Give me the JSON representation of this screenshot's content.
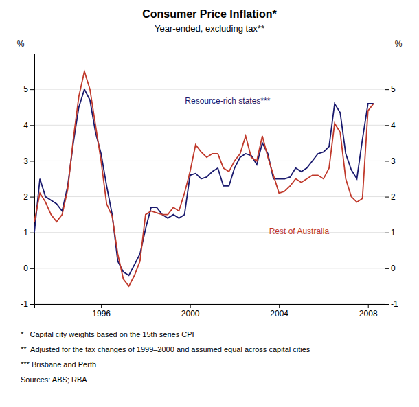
{
  "chart_data": {
    "type": "line",
    "title": "Consumer Price Inflation*",
    "subtitle": "Year-ended, excluding tax**",
    "y_label": "%",
    "y2_label": "%",
    "xlim": [
      1993.0,
      2008.75
    ],
    "xticks": [
      1996,
      2000,
      2004,
      2008
    ],
    "ylim": [
      -1,
      6
    ],
    "yticks": [
      -1,
      0,
      1,
      2,
      3,
      4,
      5
    ],
    "y2lim": [
      -1,
      6
    ],
    "y2ticks": [
      -1,
      0,
      1,
      2,
      3,
      4,
      5
    ],
    "grid": true,
    "x": [
      1993.0,
      1993.25,
      1993.5,
      1993.75,
      1994.0,
      1994.25,
      1994.5,
      1994.75,
      1995.0,
      1995.25,
      1995.5,
      1995.75,
      1996.0,
      1996.25,
      1996.5,
      1996.75,
      1997.0,
      1997.25,
      1997.5,
      1997.75,
      1998.0,
      1998.25,
      1998.5,
      1998.75,
      1999.0,
      1999.25,
      1999.5,
      1999.75,
      2000.0,
      2000.25,
      2000.5,
      2000.75,
      2001.0,
      2001.25,
      2001.5,
      2001.75,
      2002.0,
      2002.25,
      2002.5,
      2002.75,
      2003.0,
      2003.25,
      2003.5,
      2003.75,
      2004.0,
      2004.25,
      2004.5,
      2004.75,
      2005.0,
      2005.25,
      2005.5,
      2005.75,
      2006.0,
      2006.25,
      2006.5,
      2006.75,
      2007.0,
      2007.25,
      2007.5,
      2007.75,
      2008.0,
      2008.25
    ],
    "series": [
      {
        "name": "Resource-rich states***",
        "color": "#1a1a6e",
        "values": [
          1.0,
          2.5,
          2.0,
          1.9,
          1.8,
          1.6,
          2.3,
          3.5,
          4.5,
          5.0,
          4.7,
          3.8,
          3.2,
          2.3,
          1.5,
          0.2,
          -0.1,
          -0.2,
          0.1,
          0.4,
          1.1,
          1.7,
          1.7,
          1.5,
          1.4,
          1.5,
          1.4,
          1.5,
          2.6,
          2.65,
          2.5,
          2.55,
          2.7,
          2.8,
          2.3,
          2.3,
          2.8,
          3.1,
          3.2,
          3.15,
          2.9,
          3.5,
          3.2,
          2.5,
          2.5,
          2.5,
          2.55,
          2.8,
          2.7,
          2.8,
          3.0,
          3.2,
          3.25,
          3.4,
          4.6,
          4.35,
          3.2,
          2.75,
          2.5,
          3.6,
          4.6,
          4.6
        ]
      },
      {
        "name": "Rest of Australia",
        "color": "#c0392b",
        "values": [
          1.3,
          2.1,
          1.85,
          1.5,
          1.3,
          1.5,
          2.2,
          3.6,
          4.8,
          5.5,
          5.0,
          4.0,
          3.0,
          1.8,
          1.45,
          0.4,
          -0.3,
          -0.5,
          -0.2,
          0.2,
          1.5,
          1.6,
          1.55,
          1.5,
          1.5,
          1.7,
          1.6,
          2.1,
          2.7,
          3.45,
          3.25,
          3.1,
          3.2,
          3.2,
          2.8,
          2.7,
          3.0,
          3.2,
          3.7,
          3.1,
          3.0,
          3.7,
          3.1,
          2.6,
          2.1,
          2.15,
          2.3,
          2.5,
          2.4,
          2.5,
          2.6,
          2.6,
          2.5,
          2.8,
          4.05,
          3.8,
          2.5,
          2.0,
          1.85,
          1.95,
          4.4,
          4.6
        ]
      }
    ],
    "footnotes": [
      "*   Capital city weights based on the 15th series CPI",
      "**  Adjusted for the tax changes of 1999–2000 and assumed equal across capital cities",
      "*** Brisbane and Perth",
      "Sources: ABS; RBA"
    ]
  }
}
